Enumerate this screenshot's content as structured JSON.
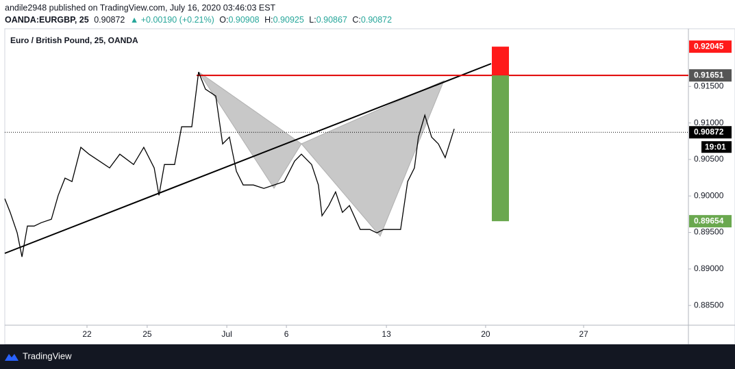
{
  "header": {
    "publisher": "andile2948 published on TradingView.com, July 16, 2020 03:46:03 EST",
    "symbol": "OANDA:EURGBP, 25",
    "last": "0.90872",
    "change": "▲ +0.00190 (+0.21%)",
    "o_label": "O:",
    "o": "0.90908",
    "h_label": "H:",
    "h": "0.90925",
    "l_label": "L:",
    "l": "0.90867",
    "c_label": "C:",
    "c": "0.90872"
  },
  "footer": {
    "brand": "TradingView"
  },
  "chart_data": {
    "type": "line",
    "title": "Euro / British Pound, 25, OANDA",
    "series": [
      {
        "name": "EURGBP",
        "color": "#000000",
        "x": [
          0,
          0.27,
          0.62,
          0.86,
          1.13,
          1.47,
          1.82,
          2.33,
          2.67,
          3.01,
          3.36,
          3.8,
          4.21,
          4.73,
          5.24,
          5.75,
          6.44,
          6.95,
          7.47,
          7.71,
          7.98,
          8.49,
          8.84,
          9.35,
          9.69,
          10.03,
          10.55,
          10.89,
          11.23,
          11.58,
          11.92,
          12.43,
          12.95,
          13.46,
          13.97,
          14.49,
          14.83,
          15.34,
          15.68,
          15.86,
          16.2,
          16.54,
          16.88,
          17.23,
          17.77,
          18.25,
          18.6,
          18.94,
          19.79,
          20.14,
          20.48,
          20.68,
          21.0,
          21.34,
          21.68,
          22.02,
          22.47
        ],
        "values": [
          0.89963,
          0.89775,
          0.89494,
          0.89166,
          0.89588,
          0.89588,
          0.89634,
          0.89681,
          0.90009,
          0.90244,
          0.90197,
          0.90666,
          0.90572,
          0.90478,
          0.90384,
          0.90572,
          0.90431,
          0.90666,
          0.90384,
          0.90009,
          0.90431,
          0.90431,
          0.90947,
          0.90947,
          0.91697,
          0.91463,
          0.91369,
          0.90713,
          0.90806,
          0.90338,
          0.9015,
          0.9015,
          0.90103,
          0.9015,
          0.90197,
          0.90478,
          0.90572,
          0.90431,
          0.9015,
          0.89728,
          0.89869,
          0.90056,
          0.89775,
          0.89869,
          0.89541,
          0.89541,
          0.89494,
          0.89541,
          0.89541,
          0.90197,
          0.90384,
          0.90806,
          0.91106,
          0.90806,
          0.90713,
          0.90525,
          0.90919
        ]
      }
    ],
    "xlim": [
      0,
      34.18
    ],
    "xticks": [
      {
        "value": 4.11,
        "label": "22"
      },
      {
        "value": 7.12,
        "label": "25"
      },
      {
        "value": 11.1,
        "label": "Jul"
      },
      {
        "value": 14.08,
        "label": "6"
      },
      {
        "value": 19.08,
        "label": "13"
      },
      {
        "value": 24.04,
        "label": "20"
      },
      {
        "value": 28.94,
        "label": "27"
      }
    ],
    "ylim": [
      0.8823,
      0.9229
    ],
    "yticks": [
      {
        "value": 0.885,
        "label": "0.88500"
      },
      {
        "value": 0.89,
        "label": "0.89000"
      },
      {
        "value": 0.895,
        "label": "0.89500"
      },
      {
        "value": 0.9,
        "label": "0.90000"
      },
      {
        "value": 0.905,
        "label": "0.90500"
      },
      {
        "value": 0.91,
        "label": "0.91000"
      },
      {
        "value": 0.915,
        "label": "0.91500"
      }
    ],
    "price_tags": {
      "target": 0.92045,
      "entry": 0.91651,
      "last": 0.90872,
      "stop": 0.89654,
      "countdown": "19:01"
    }
  }
}
